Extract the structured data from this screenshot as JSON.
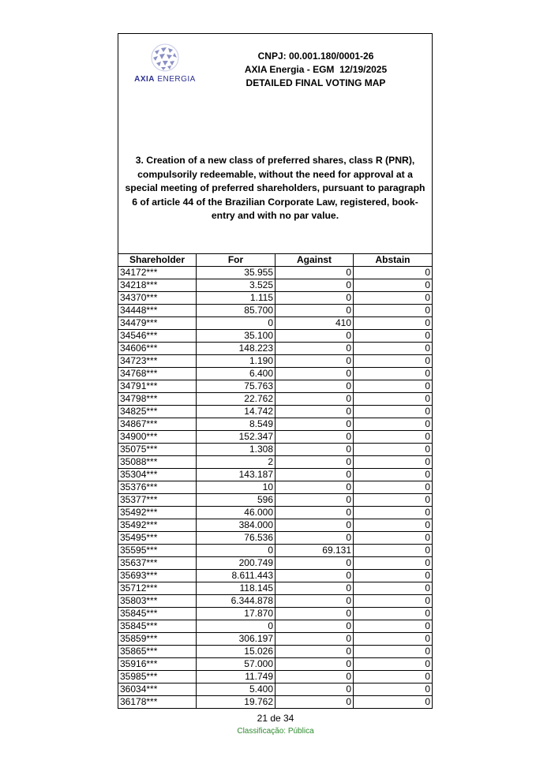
{
  "logo": {
    "text_bold": "AXIA",
    "text": " ENERGIA",
    "color": "#2b2f8f"
  },
  "header": {
    "cnpj": "CNPJ: 00.001.180/0001-26",
    "meeting": "AXIA Energia - EGM  12/19/2025",
    "title": "DETAILED FINAL VOTING MAP"
  },
  "item": "3.  Creation of a new class of preferred shares, class R (PNR), compulsorily redeemable, without the need for approval at a special meeting of preferred shareholders, pursuant to paragraph 6 of article 44 of the Brazilian Corporate Law, registered, book-entry and with no par value.",
  "table": {
    "columns": [
      "Shareholder",
      "For",
      "Against",
      "Abstain"
    ],
    "rows": [
      [
        "34172***",
        "35.955",
        "0",
        "0"
      ],
      [
        "34218***",
        "3.525",
        "0",
        "0"
      ],
      [
        "34370***",
        "1.115",
        "0",
        "0"
      ],
      [
        "34448***",
        "85.700",
        "0",
        "0"
      ],
      [
        "34479***",
        "0",
        "410",
        "0"
      ],
      [
        "34546***",
        "35.100",
        "0",
        "0"
      ],
      [
        "34606***",
        "148.223",
        "0",
        "0"
      ],
      [
        "34723***",
        "1.190",
        "0",
        "0"
      ],
      [
        "34768***",
        "6.400",
        "0",
        "0"
      ],
      [
        "34791***",
        "75.763",
        "0",
        "0"
      ],
      [
        "34798***",
        "22.762",
        "0",
        "0"
      ],
      [
        "34825***",
        "14.742",
        "0",
        "0"
      ],
      [
        "34867***",
        "8.549",
        "0",
        "0"
      ],
      [
        "34900***",
        "152.347",
        "0",
        "0"
      ],
      [
        "35075***",
        "1.308",
        "0",
        "0"
      ],
      [
        "35088***",
        "2",
        "0",
        "0"
      ],
      [
        "35304***",
        "143.187",
        "0",
        "0"
      ],
      [
        "35376***",
        "10",
        "0",
        "0"
      ],
      [
        "35377***",
        "596",
        "0",
        "0"
      ],
      [
        "35492***",
        "46.000",
        "0",
        "0"
      ],
      [
        "35492***",
        "384.000",
        "0",
        "0"
      ],
      [
        "35495***",
        "76.536",
        "0",
        "0"
      ],
      [
        "35595***",
        "0",
        "69.131",
        "0"
      ],
      [
        "35637***",
        "200.749",
        "0",
        "0"
      ],
      [
        "35693***",
        "8.611.443",
        "0",
        "0"
      ],
      [
        "35712***",
        "118.145",
        "0",
        "0"
      ],
      [
        "35803***",
        "6.344.878",
        "0",
        "0"
      ],
      [
        "35845***",
        "17.870",
        "0",
        "0"
      ],
      [
        "35845***",
        "0",
        "0",
        "0"
      ],
      [
        "35859***",
        "306.197",
        "0",
        "0"
      ],
      [
        "35865***",
        "15.026",
        "0",
        "0"
      ],
      [
        "35916***",
        "57.000",
        "0",
        "0"
      ],
      [
        "35985***",
        "11.749",
        "0",
        "0"
      ],
      [
        "36034***",
        "5.400",
        "0",
        "0"
      ],
      [
        "36178***",
        "19.762",
        "0",
        "0"
      ]
    ]
  },
  "footer": {
    "page": "21 de 34",
    "classification": "Classificação: Pública",
    "classification_color": "#2e8b2e"
  }
}
